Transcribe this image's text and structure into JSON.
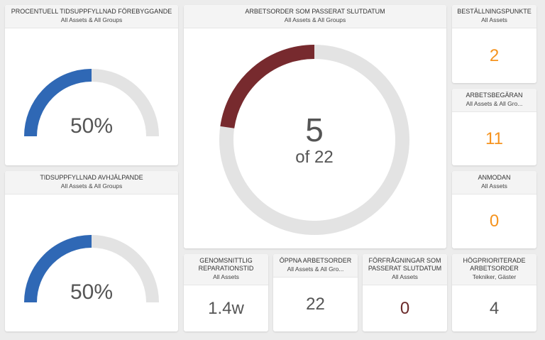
{
  "widgets": [
    {
      "title": "PROCENTUELL TIDSUPPFYLLNAD FÖREBYGGANDE",
      "subtitle": "All Assets & All Groups",
      "value": 50,
      "value_label": "50%",
      "lim": [
        0,
        100
      ]
    },
    {
      "title": "TIDSUPPFYLLNAD AVHJÄLPANDE",
      "subtitle": "All Assets & All Groups",
      "value": 50,
      "value_label": "50%",
      "lim": [
        0,
        100
      ]
    },
    {
      "title": "ARBETSORDER SOM PASSERAT SLUTDATUM",
      "subtitle": "All Assets & All Groups",
      "value": 5,
      "total": 22,
      "total_label": "of 22"
    },
    {
      "title": "BESTÄLLNINGSPUNKTE",
      "subtitle": "All Assets",
      "value": 2
    },
    {
      "title": "ARBETSBEGÄRAN",
      "subtitle": "All Assets & All Gro...",
      "value": 11
    },
    {
      "title": "ANMODAN",
      "subtitle": "All Assets",
      "value": 0
    },
    {
      "title": "GENOMSNITTLIG REPARATIONSTID",
      "subtitle": "All Assets",
      "value": 1.4,
      "value_label": "1.4w"
    },
    {
      "title": "ÖPPNA ARBETSORDER",
      "subtitle": "All Assets & All Gro...",
      "value": 22
    },
    {
      "title": "FÖRFRÅGNINGAR SOM PASSERAT SLUTDATUM",
      "subtitle": "All Assets",
      "value": 0
    },
    {
      "title": "HÖGPRIORITERADE ARBETSORDER",
      "subtitle": "Tekniker, Gäster",
      "value": 4
    }
  ]
}
